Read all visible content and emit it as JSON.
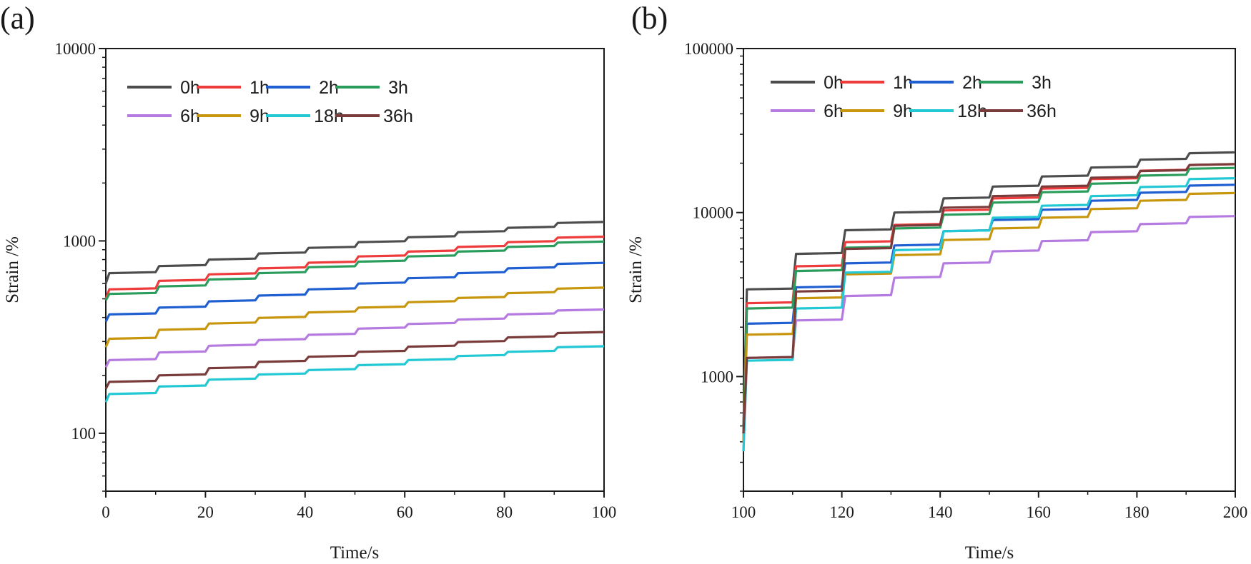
{
  "chart_data": [
    {
      "type": "line",
      "panel_label": "(a)",
      "title": "",
      "xlabel": "Time/s",
      "ylabel": "Strain /%",
      "yscale": "log",
      "xlim": [
        0,
        100
      ],
      "ylim": [
        50,
        10000
      ],
      "x_ticks": [
        "0",
        "20",
        "40",
        "60",
        "80",
        "100"
      ],
      "y_ticks": [
        "100",
        "1000",
        "10000"
      ],
      "x_tick_values": [
        0,
        20,
        40,
        60,
        80,
        100
      ],
      "y_tick_values": [
        100,
        1000,
        10000
      ],
      "grid": false,
      "legend_position": "top-left",
      "step": {
        "t0": 0,
        "period": 10,
        "count": 10
      },
      "series": [
        {
          "name": "0h",
          "color": "#4d4d4d",
          "y_start": 600,
          "steps": [
            680,
            740,
            800,
            860,
            920,
            985,
            1045,
            1110,
            1170,
            1240
          ]
        },
        {
          "name": "1h",
          "color": "#ee3b3b",
          "y_start": 500,
          "steps": [
            560,
            620,
            670,
            720,
            770,
            830,
            880,
            930,
            985,
            1040
          ]
        },
        {
          "name": "2h",
          "color": "#1f5fd1",
          "y_start": 380,
          "steps": [
            415,
            450,
            485,
            520,
            560,
            600,
            640,
            680,
            720,
            760
          ]
        },
        {
          "name": "3h",
          "color": "#2a9d5c",
          "y_start": 490,
          "steps": [
            530,
            580,
            630,
            680,
            730,
            780,
            830,
            880,
            930,
            980
          ]
        },
        {
          "name": "6h",
          "color": "#b67be0",
          "y_start": 220,
          "steps": [
            240,
            263,
            285,
            305,
            325,
            350,
            370,
            390,
            415,
            435
          ]
        },
        {
          "name": "9h",
          "color": "#c8960c",
          "y_start": 280,
          "steps": [
            310,
            345,
            372,
            398,
            425,
            450,
            480,
            505,
            535,
            565
          ]
        },
        {
          "name": "18h",
          "color": "#22c8d4",
          "y_start": 145,
          "steps": [
            160,
            175,
            190,
            202,
            213,
            226,
            240,
            252,
            265,
            280
          ]
        },
        {
          "name": "36h",
          "color": "#7a3b3b",
          "y_start": 170,
          "steps": [
            185,
            200,
            218,
            235,
            250,
            265,
            282,
            298,
            315,
            332
          ]
        }
      ]
    },
    {
      "type": "line",
      "panel_label": "(b)",
      "title": "",
      "xlabel": "Time/s",
      "ylabel": "Strain /%",
      "yscale": "log",
      "xlim": [
        100,
        200
      ],
      "ylim": [
        200,
        100000
      ],
      "x_ticks": [
        "100",
        "120",
        "140",
        "160",
        "180",
        "200"
      ],
      "y_ticks": [
        "1000",
        "10000",
        "100000"
      ],
      "x_tick_values": [
        100,
        120,
        140,
        160,
        180,
        200
      ],
      "y_tick_values": [
        1000,
        10000,
        100000
      ],
      "grid": false,
      "legend_position": "top-left",
      "step": {
        "t0": 100,
        "period": 10,
        "count": 10
      },
      "series": [
        {
          "name": "0h",
          "color": "#4d4d4d",
          "y_start": 500,
          "steps": [
            3400,
            5600,
            7800,
            10000,
            12200,
            14400,
            16600,
            18800,
            21000,
            23000
          ]
        },
        {
          "name": "1h",
          "color": "#ee3b3b",
          "y_start": 450,
          "steps": [
            2800,
            4700,
            6600,
            8400,
            10300,
            12200,
            14000,
            16000,
            18000,
            19500
          ]
        },
        {
          "name": "2h",
          "color": "#1f5fd1",
          "y_start": 400,
          "steps": [
            2100,
            3500,
            4900,
            6300,
            7700,
            9000,
            10400,
            11800,
            13200,
            14600
          ]
        },
        {
          "name": "3h",
          "color": "#2a9d5c",
          "y_start": 450,
          "steps": [
            2600,
            4400,
            6100,
            8000,
            9700,
            11500,
            13300,
            15000,
            16800,
            18500
          ]
        },
        {
          "name": "6h",
          "color": "#b67be0",
          "y_start": 350,
          "steps": [
            1300,
            2200,
            3100,
            4000,
            4900,
            5800,
            6700,
            7600,
            8500,
            9400
          ]
        },
        {
          "name": "9h",
          "color": "#c8960c",
          "y_start": 400,
          "steps": [
            1800,
            3000,
            4200,
            5500,
            6800,
            8000,
            9300,
            10500,
            11800,
            13000
          ]
        },
        {
          "name": "18h",
          "color": "#22c8d4",
          "y_start": 350,
          "steps": [
            1250,
            2600,
            4300,
            5900,
            7700,
            9300,
            11000,
            12600,
            14300,
            16000
          ]
        },
        {
          "name": "36h",
          "color": "#7a3b3b",
          "y_start": 450,
          "steps": [
            1300,
            3300,
            6000,
            8300,
            10700,
            12600,
            14400,
            16300,
            17900,
            19500
          ]
        }
      ]
    }
  ]
}
